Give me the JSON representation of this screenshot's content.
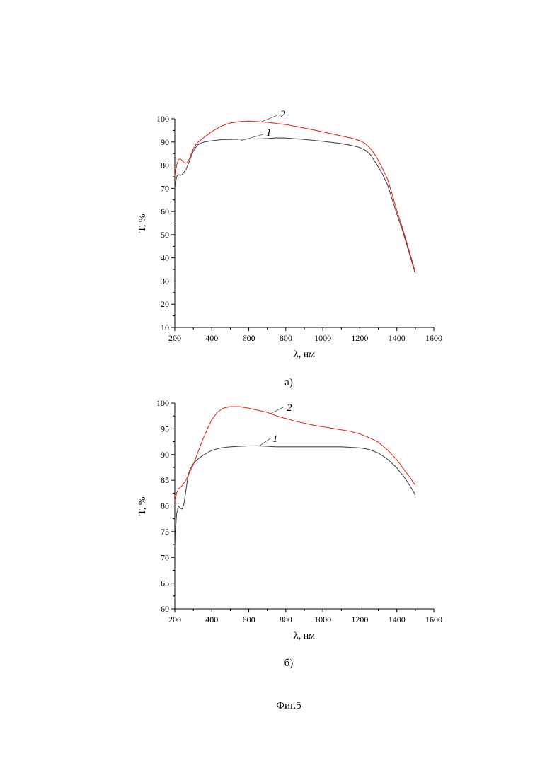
{
  "figure_caption": "Фиг.5",
  "chart_data": [
    {
      "type": "line",
      "panel_label": "а)",
      "xlabel": "λ, нм",
      "ylabel": "T, %",
      "xlim": [
        200,
        1600
      ],
      "ylim": [
        10,
        100
      ],
      "xticks": [
        200,
        400,
        600,
        800,
        1000,
        1200,
        1400,
        1600
      ],
      "yticks": [
        10,
        20,
        30,
        40,
        50,
        60,
        70,
        80,
        90,
        100
      ],
      "grid": false,
      "legend": "none",
      "series": [
        {
          "name": "1",
          "color": "#4a4a4a",
          "points": [
            [
              200,
              70
            ],
            [
              205,
              73
            ],
            [
              210,
              75
            ],
            [
              220,
              76
            ],
            [
              230,
              75.5
            ],
            [
              240,
              76
            ],
            [
              250,
              77
            ],
            [
              260,
              78
            ],
            [
              270,
              80
            ],
            [
              280,
              82
            ],
            [
              290,
              84
            ],
            [
              300,
              86
            ],
            [
              320,
              88.5
            ],
            [
              340,
              89.5
            ],
            [
              360,
              90
            ],
            [
              400,
              90.5
            ],
            [
              450,
              91
            ],
            [
              500,
              91.1
            ],
            [
              550,
              91.2
            ],
            [
              600,
              91.3
            ],
            [
              650,
              91.3
            ],
            [
              700,
              91.5
            ],
            [
              750,
              91.8
            ],
            [
              800,
              91.7
            ],
            [
              850,
              91.4
            ],
            [
              900,
              91.1
            ],
            [
              950,
              90.7
            ],
            [
              1000,
              90.3
            ],
            [
              1050,
              89.8
            ],
            [
              1100,
              89.3
            ],
            [
              1150,
              88.6
            ],
            [
              1200,
              87.6
            ],
            [
              1230,
              86.5
            ],
            [
              1260,
              84.3
            ],
            [
              1290,
              80.5
            ],
            [
              1320,
              76.5
            ],
            [
              1350,
              71.5
            ],
            [
              1380,
              64
            ],
            [
              1400,
              59
            ],
            [
              1430,
              52
            ],
            [
              1460,
              44
            ],
            [
              1480,
              38.5
            ],
            [
              1500,
              33.2
            ]
          ]
        },
        {
          "name": "2",
          "color": "#e0322a",
          "points": [
            [
              200,
              75
            ],
            [
              205,
              78
            ],
            [
              210,
              80
            ],
            [
              220,
              82.5
            ],
            [
              230,
              82.7
            ],
            [
              240,
              82
            ],
            [
              250,
              81
            ],
            [
              260,
              80.8
            ],
            [
              270,
              81.5
            ],
            [
              280,
              83
            ],
            [
              290,
              85
            ],
            [
              300,
              87
            ],
            [
              320,
              89.5
            ],
            [
              350,
              91.5
            ],
            [
              400,
              94.5
            ],
            [
              450,
              96.8
            ],
            [
              500,
              98.2
            ],
            [
              550,
              98.8
            ],
            [
              600,
              99
            ],
            [
              650,
              98.8
            ],
            [
              700,
              98.5
            ],
            [
              750,
              98
            ],
            [
              800,
              97.5
            ],
            [
              850,
              96.8
            ],
            [
              900,
              96
            ],
            [
              950,
              95.2
            ],
            [
              1000,
              94.4
            ],
            [
              1050,
              93.5
            ],
            [
              1100,
              92.6
            ],
            [
              1150,
              91.8
            ],
            [
              1200,
              90.6
            ],
            [
              1230,
              89.3
            ],
            [
              1260,
              87
            ],
            [
              1290,
              83.5
            ],
            [
              1320,
              79
            ],
            [
              1350,
              74
            ],
            [
              1380,
              66
            ],
            [
              1400,
              60.5
            ],
            [
              1430,
              53
            ],
            [
              1460,
              45
            ],
            [
              1480,
              39.5
            ],
            [
              1500,
              33.7
            ]
          ]
        }
      ]
    },
    {
      "type": "line",
      "panel_label": "б)",
      "xlabel": "λ, нм",
      "ylabel": "T, %",
      "xlim": [
        200,
        1600
      ],
      "ylim": [
        60,
        100
      ],
      "xticks": [
        200,
        400,
        600,
        800,
        1000,
        1200,
        1400,
        1600
      ],
      "yticks": [
        60,
        65,
        70,
        75,
        80,
        85,
        90,
        95,
        100
      ],
      "grid": false,
      "legend": "none",
      "series": [
        {
          "name": "1",
          "color": "#4a4a4a",
          "points": [
            [
              200,
              72
            ],
            [
              205,
              76
            ],
            [
              210,
              78.5
            ],
            [
              220,
              80
            ],
            [
              230,
              79.5
            ],
            [
              240,
              79.4
            ],
            [
              250,
              80.5
            ],
            [
              260,
              83
            ],
            [
              270,
              85.5
            ],
            [
              280,
              87
            ],
            [
              300,
              88.2
            ],
            [
              320,
              89
            ],
            [
              350,
              89.8
            ],
            [
              400,
              90.8
            ],
            [
              450,
              91.3
            ],
            [
              500,
              91.5
            ],
            [
              550,
              91.6
            ],
            [
              600,
              91.7
            ],
            [
              650,
              91.7
            ],
            [
              700,
              91.6
            ],
            [
              750,
              91.5
            ],
            [
              800,
              91.5
            ],
            [
              900,
              91.5
            ],
            [
              1000,
              91.5
            ],
            [
              1100,
              91.5
            ],
            [
              1200,
              91.3
            ],
            [
              1250,
              91
            ],
            [
              1300,
              90.3
            ],
            [
              1350,
              89.1
            ],
            [
              1400,
              87.4
            ],
            [
              1440,
              85.6
            ],
            [
              1470,
              84
            ],
            [
              1500,
              82.1
            ]
          ]
        },
        {
          "name": "2",
          "color": "#e0322a",
          "points": [
            [
              200,
              81
            ],
            [
              210,
              82.5
            ],
            [
              220,
              83.3
            ],
            [
              240,
              84
            ],
            [
              260,
              85
            ],
            [
              280,
              86.5
            ],
            [
              300,
              88
            ],
            [
              320,
              90
            ],
            [
              350,
              92.8
            ],
            [
              380,
              95.3
            ],
            [
              400,
              96.8
            ],
            [
              430,
              98.2
            ],
            [
              460,
              99
            ],
            [
              500,
              99.3
            ],
            [
              550,
              99.3
            ],
            [
              600,
              99
            ],
            [
              650,
              98.6
            ],
            [
              700,
              98.2
            ],
            [
              750,
              97.5
            ],
            [
              800,
              97
            ],
            [
              850,
              96.5
            ],
            [
              900,
              96.1
            ],
            [
              950,
              95.7
            ],
            [
              1000,
              95.4
            ],
            [
              1050,
              95.1
            ],
            [
              1100,
              94.8
            ],
            [
              1150,
              94.5
            ],
            [
              1200,
              94
            ],
            [
              1250,
              93.3
            ],
            [
              1300,
              92.4
            ],
            [
              1350,
              90.9
            ],
            [
              1400,
              89
            ],
            [
              1440,
              87
            ],
            [
              1470,
              85.6
            ],
            [
              1500,
              84
            ]
          ]
        }
      ]
    }
  ]
}
